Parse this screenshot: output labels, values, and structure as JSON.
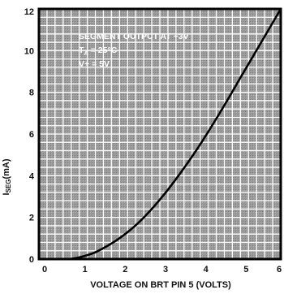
{
  "chart_data": {
    "type": "line",
    "title": "",
    "xlabel": "VOLTAGE ON BRT PIN 5 (VOLTS)",
    "ylabel": {
      "main": "I",
      "subscript": "SEG",
      "unit": "(mA)"
    },
    "xlim": [
      0,
      6
    ],
    "ylim": [
      0,
      12
    ],
    "x_ticks": [
      "0",
      "1",
      "2",
      "3",
      "4",
      "5",
      "6"
    ],
    "y_ticks": [
      "0",
      "2",
      "4",
      "6",
      "8",
      "10",
      "12"
    ],
    "grid": true,
    "background": "gray-hatched",
    "annotations": [
      {
        "key": "condition",
        "text": "SEGMENT OUTPUT AT +3V"
      },
      {
        "key": "temperature",
        "main": "T",
        "sub": "A",
        "rest": " = 25°C"
      },
      {
        "key": "supply",
        "text": "V+ = 5V"
      }
    ],
    "series": [
      {
        "x": [
          0.75,
          1.0,
          1.25,
          1.5,
          2.0,
          2.5,
          3.0,
          3.5,
          4.0,
          4.5,
          5.0,
          5.5,
          6.0
        ],
        "y": [
          0.0,
          0.08,
          0.22,
          0.42,
          1.0,
          1.8,
          2.85,
          4.1,
          5.5,
          7.05,
          8.7,
          10.35,
          12.0
        ]
      }
    ]
  },
  "colors": {
    "plot_background": "#9a9a9a",
    "grid_line": "#ffffff",
    "curve": "#000000",
    "text": "#111111",
    "annotation_text": "#ffffff"
  }
}
